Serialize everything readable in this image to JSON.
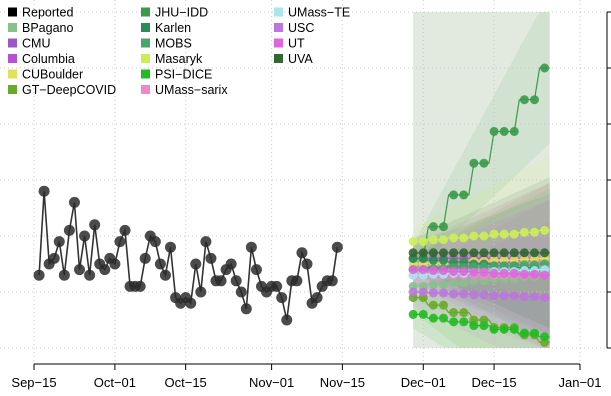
{
  "chart_data": {
    "type": "line",
    "title": "",
    "xlabel": "",
    "ylabel": "",
    "x_ticks": [
      "Sep−15",
      "Oct−01",
      "Oct−15",
      "Nov−01",
      "Nov−15",
      "Dec−01",
      "Dec−15",
      "Jan−01"
    ],
    "x_tick_dates": [
      "2020-09-15",
      "2020-10-01",
      "2020-10-15",
      "2020-11-01",
      "2020-11-15",
      "2020-12-01",
      "2020-12-15",
      "2021-01-01"
    ],
    "y_tick_labels": [],
    "y_range": [
      0,
      6
    ],
    "grid": true,
    "legend_position": "top-left",
    "projection_start_date": "2020-11-29",
    "projection_end_date": "2020-12-26",
    "observed": {
      "name": "Reported",
      "color": "#000000",
      "start_date": "2020-09-16",
      "values": [
        1.3,
        2.8,
        1.5,
        1.6,
        1.9,
        1.3,
        2.1,
        2.6,
        1.4,
        2.0,
        1.3,
        2.2,
        1.5,
        1.4,
        1.6,
        1.5,
        1.9,
        2.1,
        1.1,
        1.1,
        1.1,
        1.6,
        2.0,
        1.9,
        1.5,
        1.3,
        1.8,
        0.9,
        0.8,
        0.9,
        0.8,
        1.5,
        1.0,
        1.9,
        1.6,
        1.2,
        1.2,
        1.4,
        1.5,
        1.2,
        1.0,
        0.7,
        1.8,
        1.4,
        1.1,
        1.0,
        1.1,
        1.1,
        0.9,
        0.5,
        1.2,
        1.2,
        1.7,
        1.5,
        0.8,
        0.9,
        1.1,
        1.2,
        1.2,
        1.8
      ]
    },
    "series": [
      {
        "name": "BPagano",
        "color": "#88c189",
        "start": 1.1,
        "end": 1.3
      },
      {
        "name": "CMU",
        "color": "#9b59c4",
        "start": 1.4,
        "end": 1.6
      },
      {
        "name": "Columbia",
        "color": "#b44fd6",
        "start": 1.6,
        "end": 1.6
      },
      {
        "name": "CUBoulder",
        "color": "#e0e05a",
        "start": 1.5,
        "end": 1.6
      },
      {
        "name": "GT−DeepCOVID",
        "color": "#6aaa2a",
        "start": 0.9,
        "end": 0.1
      },
      {
        "name": "JHU−IDD",
        "color": "#3a9a4a",
        "start": 1.6,
        "end": 5.0
      },
      {
        "name": "Karlen",
        "color": "#2e8b57",
        "start": 1.6,
        "end": 1.4
      },
      {
        "name": "MOBS",
        "color": "#4aa56a",
        "start": 1.4,
        "end": 1.5
      },
      {
        "name": "Masaryk",
        "color": "#ccee55",
        "start": 1.9,
        "end": 2.1
      },
      {
        "name": "PSI−DICE",
        "color": "#22bb22",
        "start": 0.6,
        "end": 0.2
      },
      {
        "name": "UMass−sarix",
        "color": "#ee88cc",
        "start": 1.3,
        "end": 1.3
      },
      {
        "name": "UMass−TE",
        "color": "#aae6ee",
        "start": 1.3,
        "end": 1.4
      },
      {
        "name": "USC",
        "color": "#bb77dd",
        "start": 1.0,
        "end": 0.9
      },
      {
        "name": "UT",
        "color": "#dd66dd",
        "start": 1.4,
        "end": 1.3
      },
      {
        "name": "UVA",
        "color": "#336633",
        "start": 1.7,
        "end": 1.7
      }
    ]
  }
}
